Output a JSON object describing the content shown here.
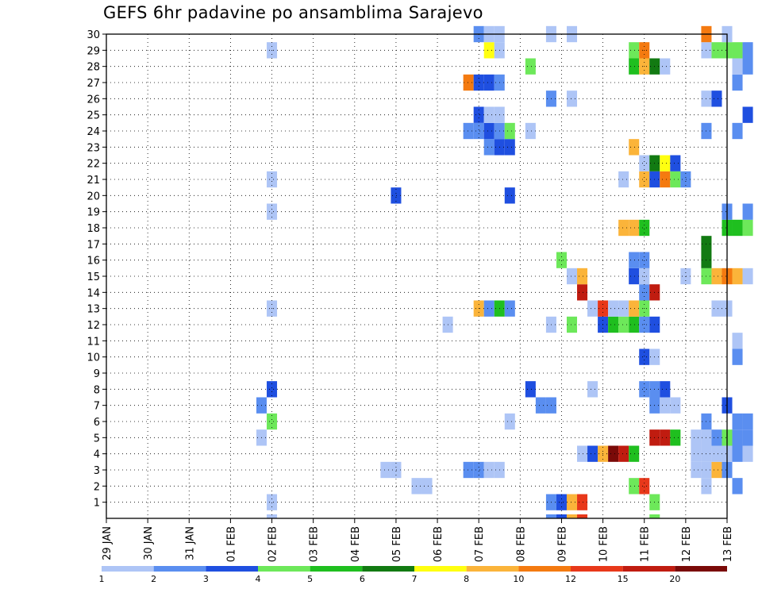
{
  "chart_data": {
    "type": "heatmap",
    "title": "GEFS 6hr padavine po ansamblima Sarajevo",
    "x_tick_labels": [
      "29 JAN",
      "30 JAN",
      "31 JAN",
      "01 FEB",
      "02 FEB",
      "03 FEB",
      "04 FEB",
      "05 FEB",
      "06 FEB",
      "07 FEB",
      "08 FEB",
      "09 FEB",
      "10 FEB",
      "11 FEB",
      "12 FEB",
      "13 FEB"
    ],
    "y_tick_labels": [
      "1",
      "2",
      "3",
      "4",
      "5",
      "6",
      "7",
      "8",
      "9",
      "10",
      "11",
      "12",
      "13",
      "14",
      "15",
      "16",
      "17",
      "18",
      "19",
      "20",
      "21",
      "22",
      "23",
      "24",
      "25",
      "26",
      "27",
      "28",
      "29",
      "30"
    ],
    "grid": true,
    "colorbar": {
      "labels": [
        "1",
        "2",
        "3",
        "4",
        "5",
        "6",
        "7",
        "8",
        "10",
        "12",
        "15",
        "20"
      ],
      "colors": [
        "#aec5f6",
        "#5a8ef0",
        "#1f4fe0",
        "#6de85a",
        "#1fbf1f",
        "#127a12",
        "#ffff10",
        "#fbb43a",
        "#f47a10",
        "#e8381a",
        "#c01c10",
        "#7a0a08"
      ]
    },
    "note": "cells: [day_offset_from_29_JAN_00UTC, member, precip_level(1-12 = colorbar bin index)]",
    "cells": [
      [
        4.0,
        0,
        1
      ],
      [
        10.75,
        0,
        2
      ],
      [
        11.0,
        0,
        3
      ],
      [
        11.25,
        0,
        8
      ],
      [
        11.5,
        0,
        10
      ],
      [
        13.25,
        0,
        4
      ],
      [
        7.75,
        1,
        1
      ],
      [
        7.5,
        1,
        1
      ],
      [
        12.75,
        1,
        4
      ],
      [
        13.0,
        1,
        10
      ],
      [
        14.5,
        1,
        1
      ],
      [
        15.25,
        1,
        2
      ],
      [
        6.75,
        2,
        1
      ],
      [
        7.0,
        2,
        1
      ],
      [
        8.75,
        2,
        2
      ],
      [
        9.0,
        2,
        2
      ],
      [
        9.25,
        2,
        1
      ],
      [
        9.5,
        2,
        1
      ],
      [
        14.25,
        2,
        1
      ],
      [
        14.5,
        2,
        1
      ],
      [
        14.75,
        2,
        8
      ],
      [
        15.0,
        2,
        2
      ],
      [
        11.5,
        3,
        1
      ],
      [
        11.75,
        3,
        3
      ],
      [
        12.0,
        3,
        8
      ],
      [
        12.25,
        3,
        12
      ],
      [
        12.5,
        3,
        11
      ],
      [
        12.75,
        3,
        5
      ],
      [
        14.25,
        3,
        1
      ],
      [
        14.5,
        3,
        1
      ],
      [
        14.75,
        3,
        1
      ],
      [
        15.0,
        3,
        1
      ],
      [
        15.25,
        3,
        2
      ],
      [
        15.5,
        3,
        1
      ],
      [
        3.75,
        4,
        1
      ],
      [
        13.25,
        4,
        11
      ],
      [
        13.5,
        4,
        11
      ],
      [
        13.75,
        4,
        5
      ],
      [
        14.25,
        4,
        1
      ],
      [
        14.5,
        4,
        1
      ],
      [
        14.75,
        4,
        2
      ],
      [
        15.0,
        4,
        4
      ],
      [
        15.25,
        4,
        2
      ],
      [
        15.5,
        4,
        2
      ],
      [
        4.0,
        5,
        4
      ],
      [
        9.75,
        5,
        1
      ],
      [
        14.5,
        5,
        2
      ],
      [
        15.25,
        5,
        2
      ],
      [
        15.5,
        5,
        2
      ],
      [
        3.75,
        6,
        2
      ],
      [
        10.5,
        6,
        2
      ],
      [
        10.75,
        6,
        2
      ],
      [
        13.25,
        6,
        2
      ],
      [
        13.5,
        6,
        1
      ],
      [
        13.75,
        6,
        1
      ],
      [
        15.0,
        6,
        3
      ],
      [
        4.0,
        7,
        3
      ],
      [
        10.25,
        7,
        3
      ],
      [
        11.75,
        7,
        1
      ],
      [
        13.0,
        7,
        2
      ],
      [
        13.25,
        7,
        2
      ],
      [
        13.5,
        7,
        3
      ],
      [
        13.0,
        9,
        3
      ],
      [
        13.25,
        9,
        1
      ],
      [
        15.25,
        9,
        2
      ],
      [
        15.25,
        10,
        1
      ],
      [
        8.25,
        11,
        1
      ],
      [
        10.75,
        11,
        1
      ],
      [
        11.25,
        11,
        4
      ],
      [
        12.0,
        11,
        3
      ],
      [
        12.25,
        11,
        5
      ],
      [
        12.5,
        11,
        4
      ],
      [
        12.75,
        11,
        5
      ],
      [
        13.0,
        11,
        2
      ],
      [
        13.25,
        11,
        3
      ],
      [
        4.0,
        12,
        1
      ],
      [
        9.0,
        12,
        8
      ],
      [
        9.25,
        12,
        2
      ],
      [
        9.5,
        12,
        5
      ],
      [
        9.75,
        12,
        2
      ],
      [
        11.75,
        12,
        1
      ],
      [
        12.0,
        12,
        10
      ],
      [
        12.25,
        12,
        1
      ],
      [
        12.5,
        12,
        1
      ],
      [
        12.75,
        12,
        8
      ],
      [
        13.0,
        12,
        4
      ],
      [
        14.75,
        12,
        1
      ],
      [
        15.0,
        12,
        1
      ],
      [
        11.5,
        13,
        11
      ],
      [
        13.0,
        13,
        2
      ],
      [
        13.25,
        13,
        11
      ],
      [
        11.25,
        14,
        1
      ],
      [
        11.5,
        14,
        8
      ],
      [
        12.75,
        14,
        3
      ],
      [
        13.0,
        14,
        1
      ],
      [
        14.0,
        14,
        1
      ],
      [
        14.5,
        14,
        4
      ],
      [
        14.75,
        14,
        8
      ],
      [
        15.0,
        14,
        9
      ],
      [
        15.25,
        14,
        8
      ],
      [
        15.5,
        14,
        1
      ],
      [
        11.0,
        15,
        4
      ],
      [
        12.75,
        15,
        2
      ],
      [
        13.0,
        15,
        2
      ],
      [
        14.5,
        15,
        6
      ],
      [
        14.5,
        16,
        6
      ],
      [
        12.5,
        17,
        8
      ],
      [
        12.75,
        17,
        8
      ],
      [
        13.0,
        17,
        5
      ],
      [
        15.0,
        17,
        5
      ],
      [
        15.25,
        17,
        5
      ],
      [
        15.5,
        17,
        4
      ],
      [
        4.0,
        18,
        1
      ],
      [
        15.0,
        18,
        2
      ],
      [
        15.5,
        18,
        2
      ],
      [
        7.0,
        19,
        3
      ],
      [
        9.75,
        19,
        3
      ],
      [
        4.0,
        20,
        1
      ],
      [
        12.5,
        20,
        1
      ],
      [
        13.0,
        20,
        8
      ],
      [
        13.25,
        20,
        3
      ],
      [
        13.5,
        20,
        9
      ],
      [
        13.75,
        20,
        4
      ],
      [
        14.0,
        20,
        2
      ],
      [
        13.0,
        21,
        1
      ],
      [
        13.25,
        21,
        6
      ],
      [
        13.5,
        21,
        7
      ],
      [
        13.75,
        21,
        3
      ],
      [
        12.75,
        22,
        8
      ],
      [
        9.25,
        22,
        2
      ],
      [
        9.5,
        22,
        3
      ],
      [
        9.75,
        22,
        3
      ],
      [
        8.75,
        23,
        2
      ],
      [
        9.0,
        23,
        2
      ],
      [
        9.25,
        23,
        3
      ],
      [
        9.5,
        23,
        2
      ],
      [
        9.75,
        23,
        4
      ],
      [
        10.25,
        23,
        1
      ],
      [
        14.5,
        23,
        2
      ],
      [
        15.25,
        23,
        2
      ],
      [
        9.0,
        24,
        3
      ],
      [
        9.25,
        24,
        1
      ],
      [
        9.5,
        24,
        1
      ],
      [
        15.5,
        24,
        3
      ],
      [
        10.75,
        25,
        2
      ],
      [
        11.25,
        25,
        1
      ],
      [
        14.5,
        25,
        1
      ],
      [
        14.75,
        25,
        3
      ],
      [
        8.75,
        26,
        9
      ],
      [
        9.0,
        26,
        3
      ],
      [
        9.25,
        26,
        3
      ],
      [
        9.5,
        26,
        2
      ],
      [
        15.25,
        26,
        2
      ],
      [
        10.25,
        27,
        4
      ],
      [
        12.75,
        27,
        5
      ],
      [
        13.0,
        27,
        8
      ],
      [
        13.25,
        27,
        6
      ],
      [
        13.5,
        27,
        1
      ],
      [
        15.25,
        27,
        1
      ],
      [
        15.5,
        27,
        2
      ],
      [
        4.0,
        28,
        1
      ],
      [
        9.25,
        28,
        7
      ],
      [
        9.5,
        28,
        1
      ],
      [
        12.75,
        28,
        4
      ],
      [
        13.0,
        28,
        9
      ],
      [
        14.5,
        28,
        1
      ],
      [
        14.75,
        28,
        4
      ],
      [
        15.0,
        28,
        4
      ],
      [
        15.25,
        28,
        4
      ],
      [
        15.5,
        28,
        2
      ],
      [
        9.0,
        29,
        2
      ],
      [
        9.25,
        29,
        1
      ],
      [
        9.5,
        29,
        1
      ],
      [
        10.75,
        29,
        1
      ],
      [
        11.25,
        29,
        1
      ],
      [
        14.5,
        29,
        9
      ],
      [
        15.0,
        29,
        1
      ]
    ],
    "bottom_strip": [
      [
        4.0,
        1
      ],
      [
        10.75,
        2
      ],
      [
        11.0,
        3
      ],
      [
        11.25,
        8
      ],
      [
        11.5,
        10
      ],
      [
        13.25,
        4
      ]
    ]
  }
}
